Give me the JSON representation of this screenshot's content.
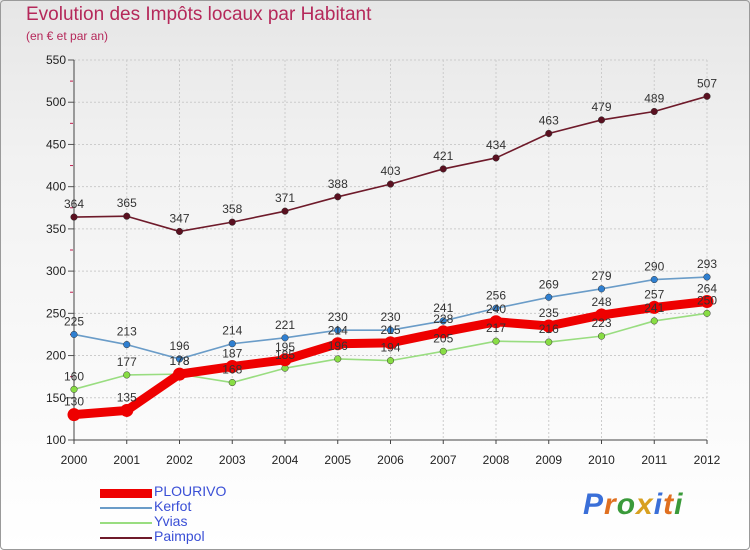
{
  "page": {
    "title": "Evolution des Impôts locaux par Habitant",
    "subtitle": "(en € et par an)"
  },
  "brand": {
    "letters": [
      "P",
      "r",
      "o",
      "x",
      "i",
      "t",
      "i"
    ],
    "colors": [
      "#3a6fd8",
      "#e07020",
      "#3a9a3a",
      "#d8a020",
      "#3a6fd8",
      "#e07020",
      "#3a9a3a"
    ]
  },
  "chart_data": {
    "type": "line",
    "title": "Evolution des Impôts locaux par Habitant",
    "subtitle": "(en € et par an)",
    "xlabel": "",
    "ylabel": "",
    "x": [
      2000,
      2001,
      2002,
      2003,
      2004,
      2005,
      2006,
      2007,
      2008,
      2009,
      2010,
      2011,
      2012
    ],
    "x_tick_labels": [
      "2000",
      "2001",
      "2002",
      "2003",
      "2004",
      "2005",
      "2006",
      "2007",
      "2008",
      "2009",
      "2010",
      "2011",
      "2012"
    ],
    "ylim": [
      100,
      550
    ],
    "y_ticks": [
      100,
      150,
      200,
      250,
      300,
      350,
      400,
      450,
      500,
      550
    ],
    "grid": true,
    "legend_position": "bottom-left",
    "series": [
      {
        "name": "Paimpol",
        "color": "#6e1a2a",
        "marker_color": "#5a1020",
        "values": [
          364,
          365,
          347,
          358,
          371,
          388,
          403,
          421,
          434,
          463,
          479,
          489,
          507
        ]
      },
      {
        "name": "Kerfot",
        "color": "#6a9cc8",
        "marker_color": "#2f7fd0",
        "values": [
          225,
          213,
          196,
          214,
          221,
          230,
          230,
          241,
          256,
          269,
          279,
          290,
          293
        ]
      },
      {
        "name": "Yvias",
        "color": "#99dd80",
        "marker_color": "#88dd44",
        "values": [
          160,
          177,
          178,
          168,
          185,
          196,
          194,
          205,
          217,
          216,
          223,
          241,
          250
        ]
      },
      {
        "name": "PLOURIVO",
        "color": "#ee0000",
        "marker_color": "#ee0000",
        "values": [
          130,
          135,
          178,
          187,
          195,
          214,
          215,
          228,
          240,
          235,
          248,
          257,
          264
        ]
      }
    ],
    "point_labels": {
      "Paimpol": [
        "364",
        "365",
        "347",
        "358",
        "371",
        "388",
        "403",
        "421",
        "434",
        "463",
        "479",
        "489",
        "507"
      ],
      "Kerfot": [
        "225",
        "213",
        "196",
        "214",
        "221",
        "230",
        "230",
        "241",
        "256",
        "269",
        "279",
        "290",
        "293"
      ],
      "Yvias": [
        "160",
        "177",
        "178",
        "168",
        "185",
        "196",
        "194",
        "205",
        "217",
        "216",
        "223",
        "241",
        "250"
      ],
      "PLOURIVO": [
        "130",
        "135",
        "178",
        "187",
        "195",
        "214",
        "215",
        "228",
        "240",
        "235",
        "248",
        "257",
        "264"
      ]
    },
    "legend_order": [
      "PLOURIVO",
      "Kerfot",
      "Yvias",
      "Paimpol"
    ]
  }
}
